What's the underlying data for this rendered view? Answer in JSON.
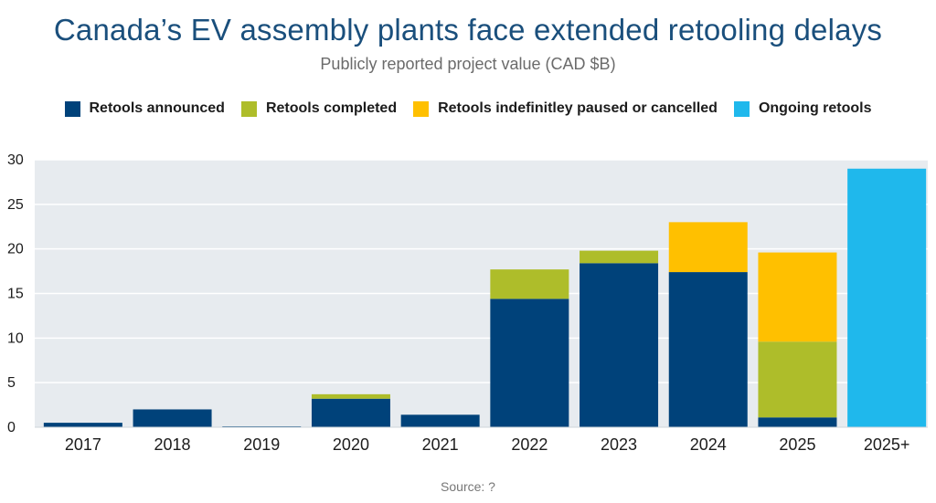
{
  "chart_data": {
    "type": "bar",
    "stacked": true,
    "title": "Canada’s EV assembly plants face extended retooling delays",
    "subtitle": "Publicly reported project value (CAD $B)",
    "source": "Source: ?",
    "categories": [
      "2017",
      "2018",
      "2019",
      "2020",
      "2021",
      "2022",
      "2023",
      "2024",
      "2025",
      "2025+"
    ],
    "ylim": [
      0,
      30
    ],
    "yticks": [
      "0",
      "5",
      "10",
      "15",
      "20",
      "25",
      "30"
    ],
    "grid": true,
    "legend_position": "top",
    "series": [
      {
        "name": "Retools announced",
        "color": "#00427a",
        "values": [
          0.5,
          2.0,
          0.1,
          3.2,
          1.4,
          14.4,
          18.4,
          17.4,
          1.1,
          0
        ]
      },
      {
        "name": "Retools completed",
        "color": "#aebd2a",
        "values": [
          0,
          0,
          0,
          0.5,
          0,
          3.3,
          1.4,
          0,
          8.5,
          0
        ]
      },
      {
        "name": "Retools indefinitley paused or cancelled",
        "color": "#ffc000",
        "values": [
          0,
          0,
          0,
          0,
          0,
          0,
          0,
          5.6,
          10.0,
          0
        ]
      },
      {
        "name": "Ongoing retools",
        "color": "#1fb8ec",
        "values": [
          0,
          0,
          0,
          0,
          0,
          0,
          0,
          0,
          0,
          29.0
        ]
      }
    ]
  }
}
